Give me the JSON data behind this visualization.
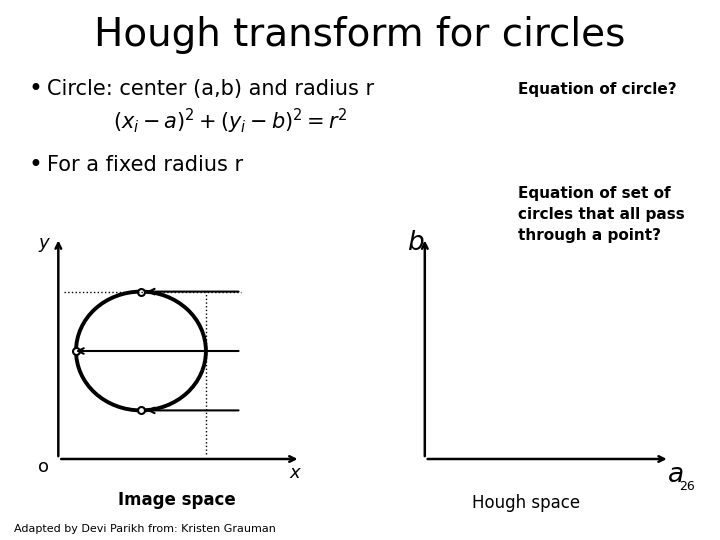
{
  "title": "Hough transform for circles",
  "bullet1": "Circle: center (a,b) and radius r",
  "bullet2": "For a fixed radius r",
  "eq_label": "Equation of circle?",
  "eq_set_label": "Equation of set of\ncircles that all pass\nthrough a point?",
  "image_space_label": "Image space",
  "hough_space_label": "Hough space",
  "footer": "Adapted by Devi Parikh from: Kristen Grauman",
  "slide_number": "26",
  "bg_color": "#ffffff",
  "fg_color": "#000000",
  "title_fontsize": 28,
  "bullet_fontsize": 15,
  "eq_label_fontsize": 11,
  "diagram_label_fontsize": 12,
  "footer_fontsize": 8
}
